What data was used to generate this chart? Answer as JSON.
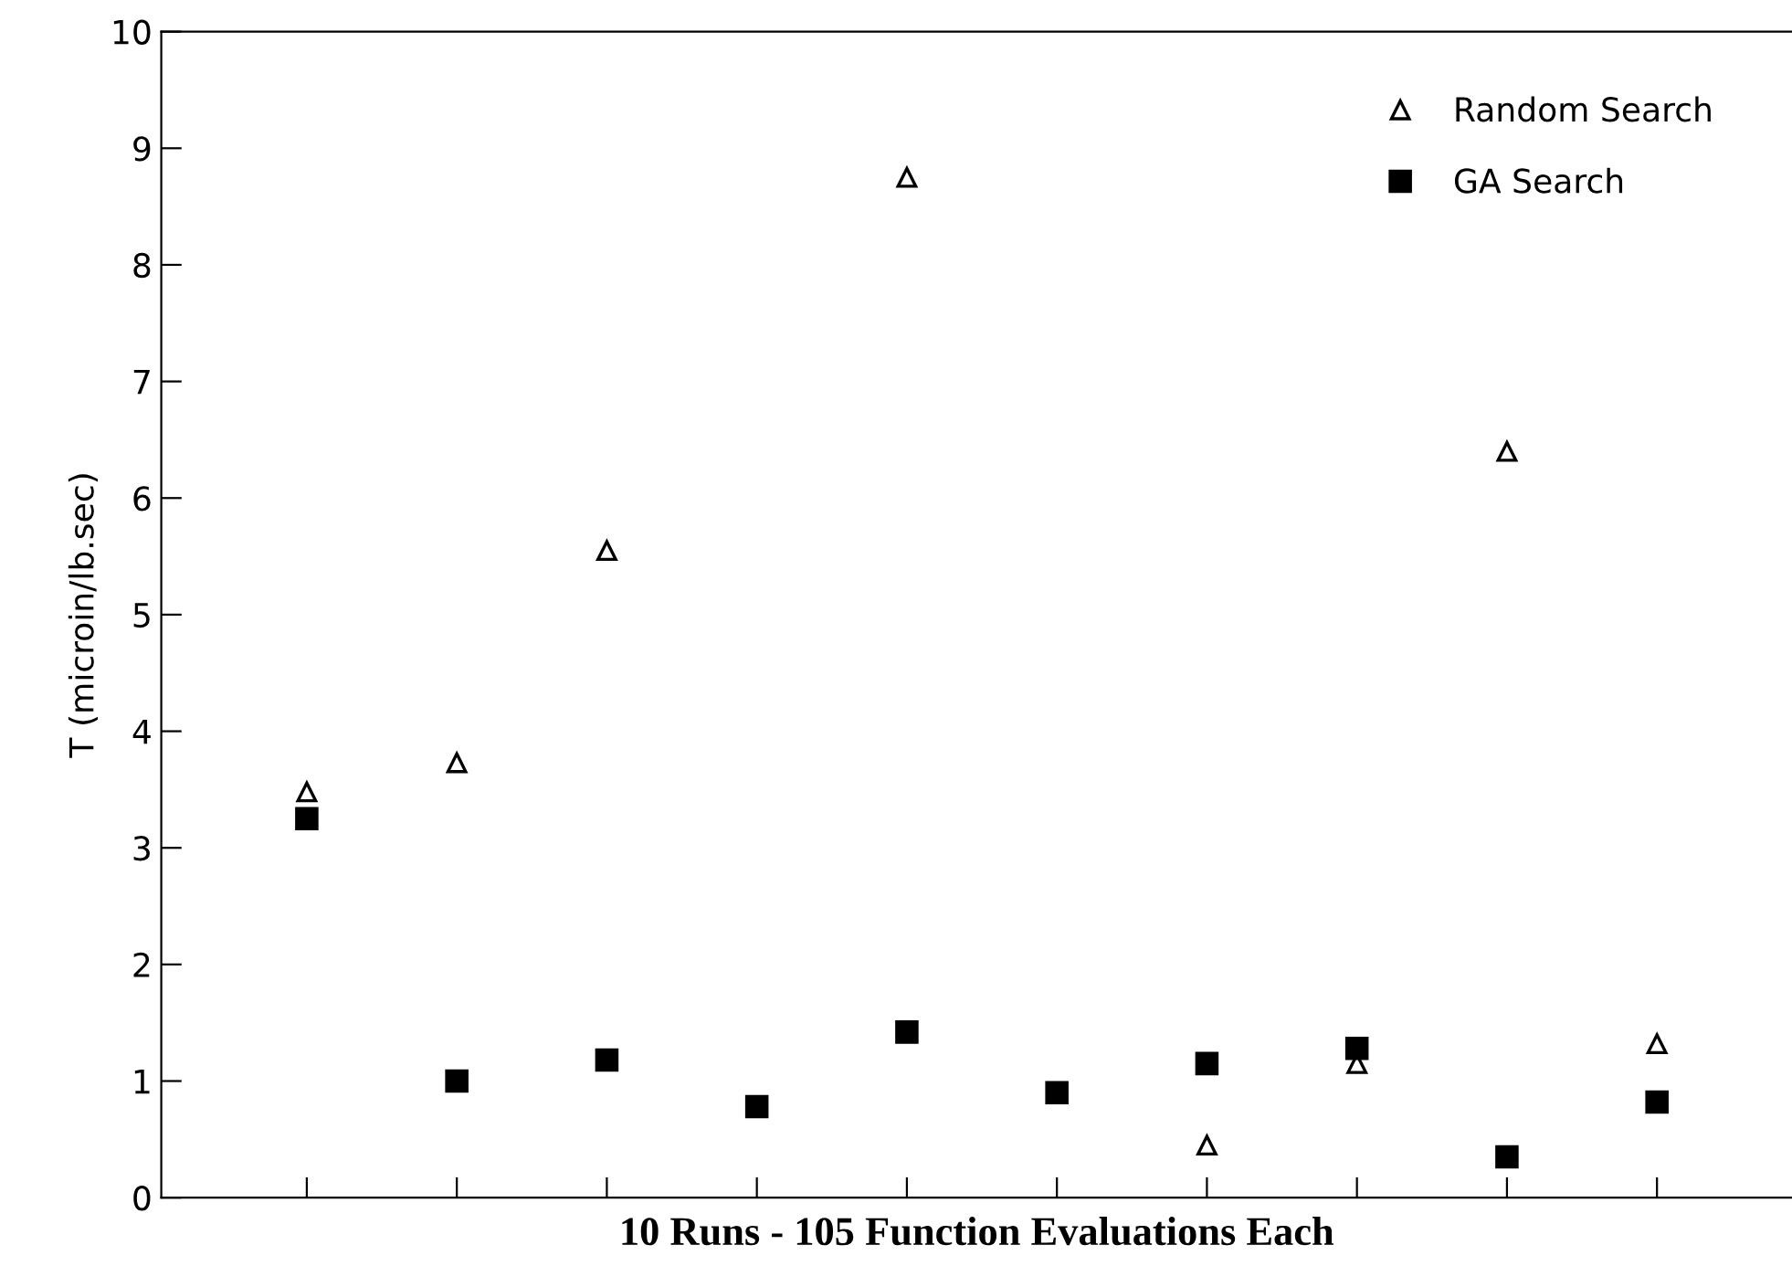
{
  "chart_data": {
    "type": "scatter",
    "xlabel": "10 Runs - 105 Function Evaluations Each",
    "ylabel": "T (microin/lb.sec)",
    "categories": [
      null,
      null,
      null,
      null,
      null,
      null,
      null,
      null,
      null,
      null
    ],
    "series": [
      {
        "name": "Random Search",
        "color": "#000000",
        "marker": "triangle",
        "values": [
          3.48,
          3.73,
          5.55,
          null,
          8.75,
          null,
          0.45,
          1.15,
          6.4,
          1.32
        ]
      },
      {
        "name": "GA Search",
        "color": "#000000",
        "marker": "square",
        "values": [
          3.25,
          1.0,
          1.18,
          0.78,
          1.42,
          0.9,
          1.15,
          1.28,
          0.35,
          0.82
        ]
      }
    ],
    "ylim": [
      0,
      10
    ],
    "yticks": [
      0,
      1,
      2,
      3,
      4,
      5,
      6,
      7,
      8,
      9,
      10
    ],
    "grid": false,
    "legend": "top right"
  }
}
